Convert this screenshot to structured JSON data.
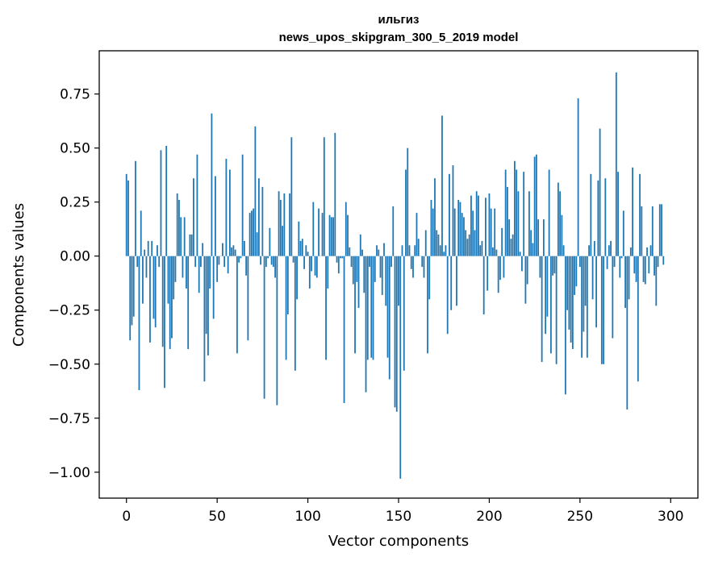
{
  "chart_data": {
    "type": "bar",
    "title": "ильгиз",
    "subtitle": "news_upos_skipgram_300_5_2019 model",
    "xlabel": "Vector components",
    "ylabel": "Components values",
    "xlim": [
      -15,
      315
    ],
    "ylim": [
      -1.12,
      0.95
    ],
    "x_ticks": [
      0,
      50,
      100,
      150,
      200,
      250,
      300
    ],
    "x_tick_labels": [
      "0",
      "50",
      "100",
      "150",
      "200",
      "250",
      "300"
    ],
    "y_ticks": [
      0.75,
      0.5,
      0.25,
      0.0,
      -0.25,
      -0.5,
      -0.75,
      -1.0
    ],
    "y_tick_labels": [
      "0.75",
      "0.50",
      "0.25",
      "0.00",
      "−0.25",
      "−0.50",
      "−0.75",
      "−1.00"
    ],
    "bar_color": "#1f77b4",
    "values": [
      0.38,
      0.35,
      -0.39,
      -0.32,
      -0.28,
      0.44,
      -0.05,
      -0.62,
      0.21,
      -0.22,
      0.03,
      -0.1,
      0.07,
      -0.4,
      0.07,
      -0.29,
      -0.33,
      0.05,
      -0.05,
      0.49,
      -0.42,
      -0.61,
      0.51,
      -0.22,
      -0.43,
      -0.38,
      -0.2,
      -0.12,
      0.29,
      0.26,
      0.18,
      -0.1,
      0.18,
      -0.15,
      -0.43,
      0.1,
      0.1,
      0.36,
      -0.05,
      0.47,
      -0.17,
      -0.05,
      0.06,
      -0.58,
      -0.36,
      -0.46,
      -0.15,
      0.66,
      -0.29,
      0.37,
      -0.12,
      -0.04,
      0.0,
      0.06,
      -0.05,
      0.45,
      -0.08,
      0.4,
      0.04,
      0.05,
      0.03,
      -0.45,
      -0.03,
      -0.01,
      0.47,
      0.07,
      -0.09,
      -0.39,
      0.2,
      0.21,
      0.22,
      0.6,
      0.11,
      0.36,
      -0.04,
      0.32,
      -0.66,
      -0.05,
      -0.01,
      0.13,
      -0.04,
      -0.05,
      -0.1,
      -0.69,
      0.3,
      0.26,
      0.14,
      0.29,
      -0.48,
      -0.27,
      0.29,
      0.55,
      -0.03,
      -0.53,
      -0.2,
      0.16,
      0.07,
      0.08,
      -0.06,
      0.05,
      0.02,
      -0.15,
      -0.07,
      0.25,
      -0.09,
      -0.1,
      0.22,
      0.0,
      0.2,
      0.55,
      -0.48,
      -0.15,
      0.19,
      0.18,
      0.18,
      0.57,
      -0.03,
      -0.08,
      -0.01,
      -0.01,
      -0.68,
      0.25,
      0.19,
      0.04,
      -0.05,
      -0.13,
      -0.45,
      -0.12,
      -0.24,
      0.1,
      0.03,
      -0.17,
      -0.63,
      -0.48,
      -0.05,
      -0.47,
      -0.48,
      -0.12,
      0.05,
      0.03,
      -0.1,
      -0.18,
      0.06,
      -0.23,
      -0.47,
      -0.57,
      -0.05,
      0.23,
      -0.7,
      -0.72,
      -0.23,
      -1.03,
      0.05,
      -0.53,
      0.4,
      0.5,
      0.05,
      -0.06,
      -0.1,
      0.05,
      0.2,
      0.08,
      0.0,
      -0.05,
      -0.1,
      0.12,
      -0.45,
      -0.2,
      0.26,
      0.22,
      0.36,
      0.12,
      0.1,
      0.05,
      0.65,
      0.02,
      0.05,
      -0.36,
      0.38,
      -0.25,
      0.42,
      0.22,
      -0.23,
      0.26,
      0.25,
      0.2,
      0.18,
      0.12,
      0.08,
      0.1,
      0.28,
      0.21,
      0.12,
      0.3,
      0.28,
      0.05,
      0.07,
      -0.27,
      0.27,
      -0.16,
      0.29,
      0.22,
      0.04,
      0.22,
      0.03,
      -0.17,
      -0.11,
      0.13,
      -0.1,
      0.4,
      0.32,
      0.17,
      0.08,
      0.1,
      0.44,
      0.4,
      0.3,
      0.02,
      -0.07,
      0.39,
      -0.22,
      -0.13,
      0.3,
      0.12,
      0.06,
      0.46,
      0.47,
      0.17,
      -0.1,
      -0.49,
      0.17,
      -0.36,
      -0.28,
      0.4,
      -0.45,
      -0.09,
      -0.08,
      -0.5,
      0.34,
      0.3,
      0.19,
      0.05,
      -0.64,
      -0.25,
      -0.34,
      -0.4,
      -0.43,
      -0.18,
      -0.14,
      0.73,
      -0.05,
      -0.47,
      -0.35,
      -0.23,
      -0.47,
      0.05,
      0.38,
      -0.2,
      0.07,
      -0.33,
      0.35,
      0.59,
      -0.5,
      -0.5,
      0.36,
      -0.06,
      0.05,
      0.07,
      -0.38,
      -0.05,
      0.85,
      0.39,
      -0.1,
      -0.01,
      0.21,
      -0.24,
      -0.71,
      -0.2,
      0.04,
      0.41,
      -0.08,
      -0.12,
      -0.58,
      0.38,
      0.23,
      -0.12,
      -0.13,
      0.04,
      -0.08,
      0.05,
      0.23,
      -0.09,
      -0.23,
      -0.05,
      0.24,
      0.24,
      -0.04
    ]
  }
}
